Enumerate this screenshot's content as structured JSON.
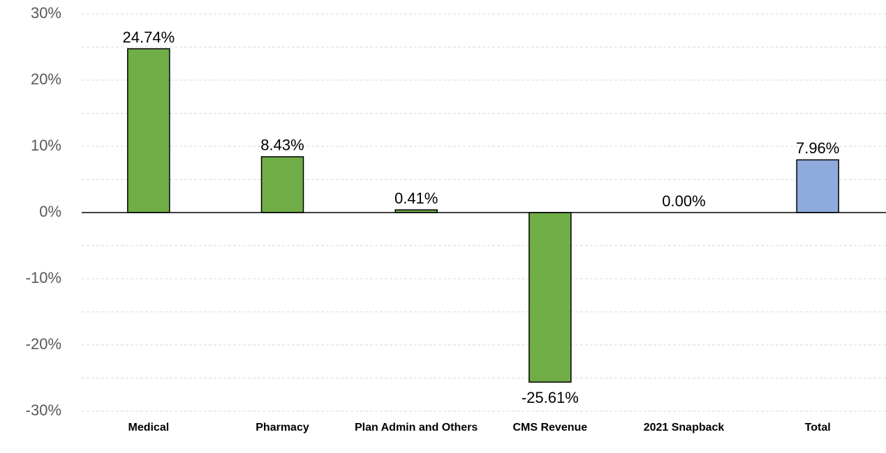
{
  "chart_data": {
    "type": "bar",
    "categories": [
      "Medical",
      "Pharmacy",
      "Plan Admin and Others",
      "CMS Revenue",
      "2021 Snapback",
      "Total"
    ],
    "values": [
      24.74,
      8.43,
      0.41,
      -25.61,
      0.0,
      7.96
    ],
    "value_labels": [
      "24.74%",
      "8.43%",
      "0.41%",
      "-25.61%",
      "0.00%",
      "7.96%"
    ],
    "colors": [
      "#70ad47",
      "#70ad47",
      "#70ad47",
      "#70ad47",
      "#70ad47",
      "#8faadc"
    ],
    "ylim": [
      -30,
      30
    ],
    "yticks": [
      {
        "value": -30,
        "label": "-30%"
      },
      {
        "value": -20,
        "label": "-20%"
      },
      {
        "value": -10,
        "label": "-10%"
      },
      {
        "value": 0,
        "label": "0%"
      },
      {
        "value": 10,
        "label": "10%"
      },
      {
        "value": 20,
        "label": "20%"
      },
      {
        "value": 30,
        "label": "30%"
      }
    ],
    "minor_yticks": [
      -25,
      -15,
      -5,
      5,
      15,
      25
    ],
    "grid": true
  }
}
